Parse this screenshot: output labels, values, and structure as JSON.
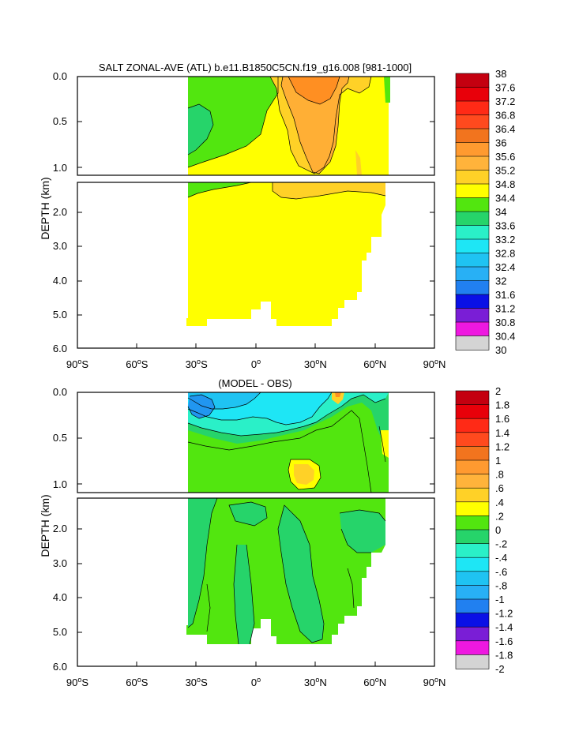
{
  "chart_data": [
    {
      "type": "heatmap",
      "title": "SALT ZONAL-AVE (ATL) b.e11.B1850C5CN.f19_g16.008 [981-1000]",
      "ylabel": "DEPTH (km)",
      "xlim": [
        -90,
        90
      ],
      "ylim": [
        6.0,
        0.0
      ],
      "depth_break_km": 1.15,
      "y_ticks_upper": [
        "0.0",
        "0.5",
        "1.0"
      ],
      "y_ticks_lower": [
        "2.0",
        "3.0",
        "4.0",
        "5.0",
        "6.0"
      ],
      "x_ticks": [
        {
          "value": -90,
          "num": "90",
          "hemi": "S"
        },
        {
          "value": -60,
          "num": "60",
          "hemi": "S"
        },
        {
          "value": -30,
          "num": "30",
          "hemi": "S"
        },
        {
          "value": 0,
          "num": "0",
          "hemi": ""
        },
        {
          "value": 30,
          "num": "30",
          "hemi": "N"
        },
        {
          "value": 60,
          "num": "60",
          "hemi": "N"
        },
        {
          "value": 90,
          "num": "90",
          "hemi": "N"
        }
      ],
      "colorbar_labels": [
        "38",
        "37.6",
        "37.2",
        "36.8",
        "36.4",
        "36",
        "35.6",
        "35.2",
        "34.8",
        "34.4",
        "34",
        "33.6",
        "33.2",
        "32.8",
        "32.4",
        "32",
        "31.6",
        "31.2",
        "30.8",
        "30.4",
        "30"
      ],
      "regions": [
        {
          "label": "34.4-34.8 (upper left)",
          "color": "#52e60f"
        },
        {
          "label": "34.0-34.4",
          "color": "#26d46a"
        },
        {
          "label": "34.8-35.2",
          "color": "#ffff00"
        },
        {
          "label": "35.2-35.6",
          "color": "#ffd127"
        },
        {
          "label": "35.6-36.0",
          "color": "#ffaf35"
        },
        {
          "label": "36.0-36.4",
          "color": "#ff8f22"
        }
      ]
    },
    {
      "type": "heatmap",
      "title": "(MODEL - OBS)",
      "ylabel": "DEPTH (km)",
      "xlim": [
        -90,
        90
      ],
      "ylim": [
        6.0,
        0.0
      ],
      "depth_break_km": 1.15,
      "y_ticks_upper": [
        "0.0",
        "0.5",
        "1.0"
      ],
      "y_ticks_lower": [
        "2.0",
        "3.0",
        "4.0",
        "5.0",
        "6.0"
      ],
      "x_ticks": [
        {
          "value": -90,
          "num": "90",
          "hemi": "S"
        },
        {
          "value": -60,
          "num": "60",
          "hemi": "S"
        },
        {
          "value": -30,
          "num": "30",
          "hemi": "S"
        },
        {
          "value": 0,
          "num": "0",
          "hemi": ""
        },
        {
          "value": 30,
          "num": "30",
          "hemi": "N"
        },
        {
          "value": 60,
          "num": "60",
          "hemi": "N"
        },
        {
          "value": 90,
          "num": "90",
          "hemi": "N"
        }
      ],
      "colorbar_labels": [
        "2",
        "1.8",
        "1.6",
        "1.4",
        "1.2",
        "1",
        ".8",
        ".6",
        ".4",
        ".2",
        "0",
        "-.2",
        "-.4",
        "-.6",
        "-.8",
        "-1",
        "-1.2",
        "-1.4",
        "-1.6",
        "-1.8",
        "-2"
      ],
      "regions": [
        {
          "label": "0.2-0.4 (dominant)",
          "color": "#52e60f"
        },
        {
          "label": "0-0.2",
          "color": "#26d46a"
        },
        {
          "label": "-0.2-0",
          "color": "#2af0c8"
        },
        {
          "label": "-0.4--0.2",
          "color": "#1ee6f5"
        },
        {
          "label": "-0.6--0.4",
          "color": "#1fc3f2"
        },
        {
          "label": "-0.8--0.6",
          "color": "#2196f0"
        },
        {
          "label": "0.6-0.8",
          "color": "#ffff00"
        },
        {
          "label": "0.8-1.0",
          "color": "#ffd127"
        }
      ]
    }
  ],
  "colors": {
    "colorbar": [
      "#c40010",
      "#e8000a",
      "#ff2a16",
      "#ff4a1e",
      "#f2741e",
      "#ff9a30",
      "#ffb33b",
      "#ffd127",
      "#ffff00",
      "#52e60f",
      "#26d46a",
      "#2af0c8",
      "#1ee6f5",
      "#1fc3f2",
      "#28b0f5",
      "#2180f0",
      "#0a10e6",
      "#7a1ed6",
      "#ee18e0",
      "#d4d4d4",
      "#808080"
    ],
    "zero_band": "#26d46a"
  }
}
